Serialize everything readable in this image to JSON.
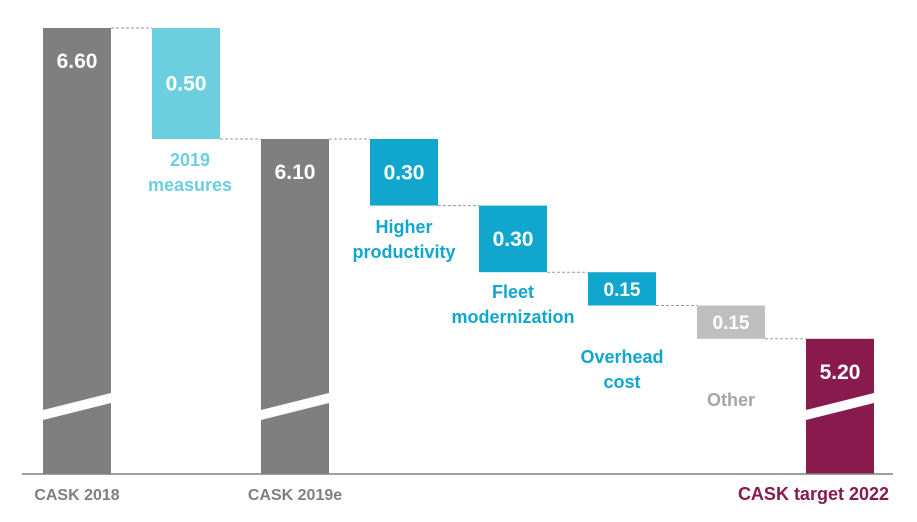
{
  "chart_data": {
    "type": "waterfall",
    "categories": [
      "CASK 2018",
      "2019 measures",
      "CASK 2019e",
      "Higher productivity",
      "Fleet modernization",
      "Overhead cost",
      "Other",
      "CASK target 2022"
    ],
    "values": [
      6.6,
      -0.5,
      6.1,
      -0.3,
      -0.3,
      -0.15,
      -0.15,
      5.2
    ],
    "measures": [
      "total",
      "relative",
      "total",
      "relative",
      "relative",
      "relative",
      "relative",
      "total"
    ],
    "value_labels": [
      "6.60",
      "0.50",
      "6.10",
      "0.30",
      "0.30",
      "0.15",
      "0.15",
      "5.20"
    ],
    "labels": [
      "CASK 2018",
      "2019\nmeasures",
      "CASK 2019e",
      "Higher\nproductivity",
      "Fleet\nmodernization",
      "Overhead\ncost",
      "Other",
      "CASK target 2022"
    ],
    "colors": {
      "total": "#7f7f7f",
      "measures_2019": "#6ccfdf",
      "reduction": "#10a6cd",
      "other": "#bfbfbf",
      "target": "#891a4e",
      "target_label": "#891a4e",
      "total_label": "#7f7f7f"
    },
    "axis_break": true
  }
}
